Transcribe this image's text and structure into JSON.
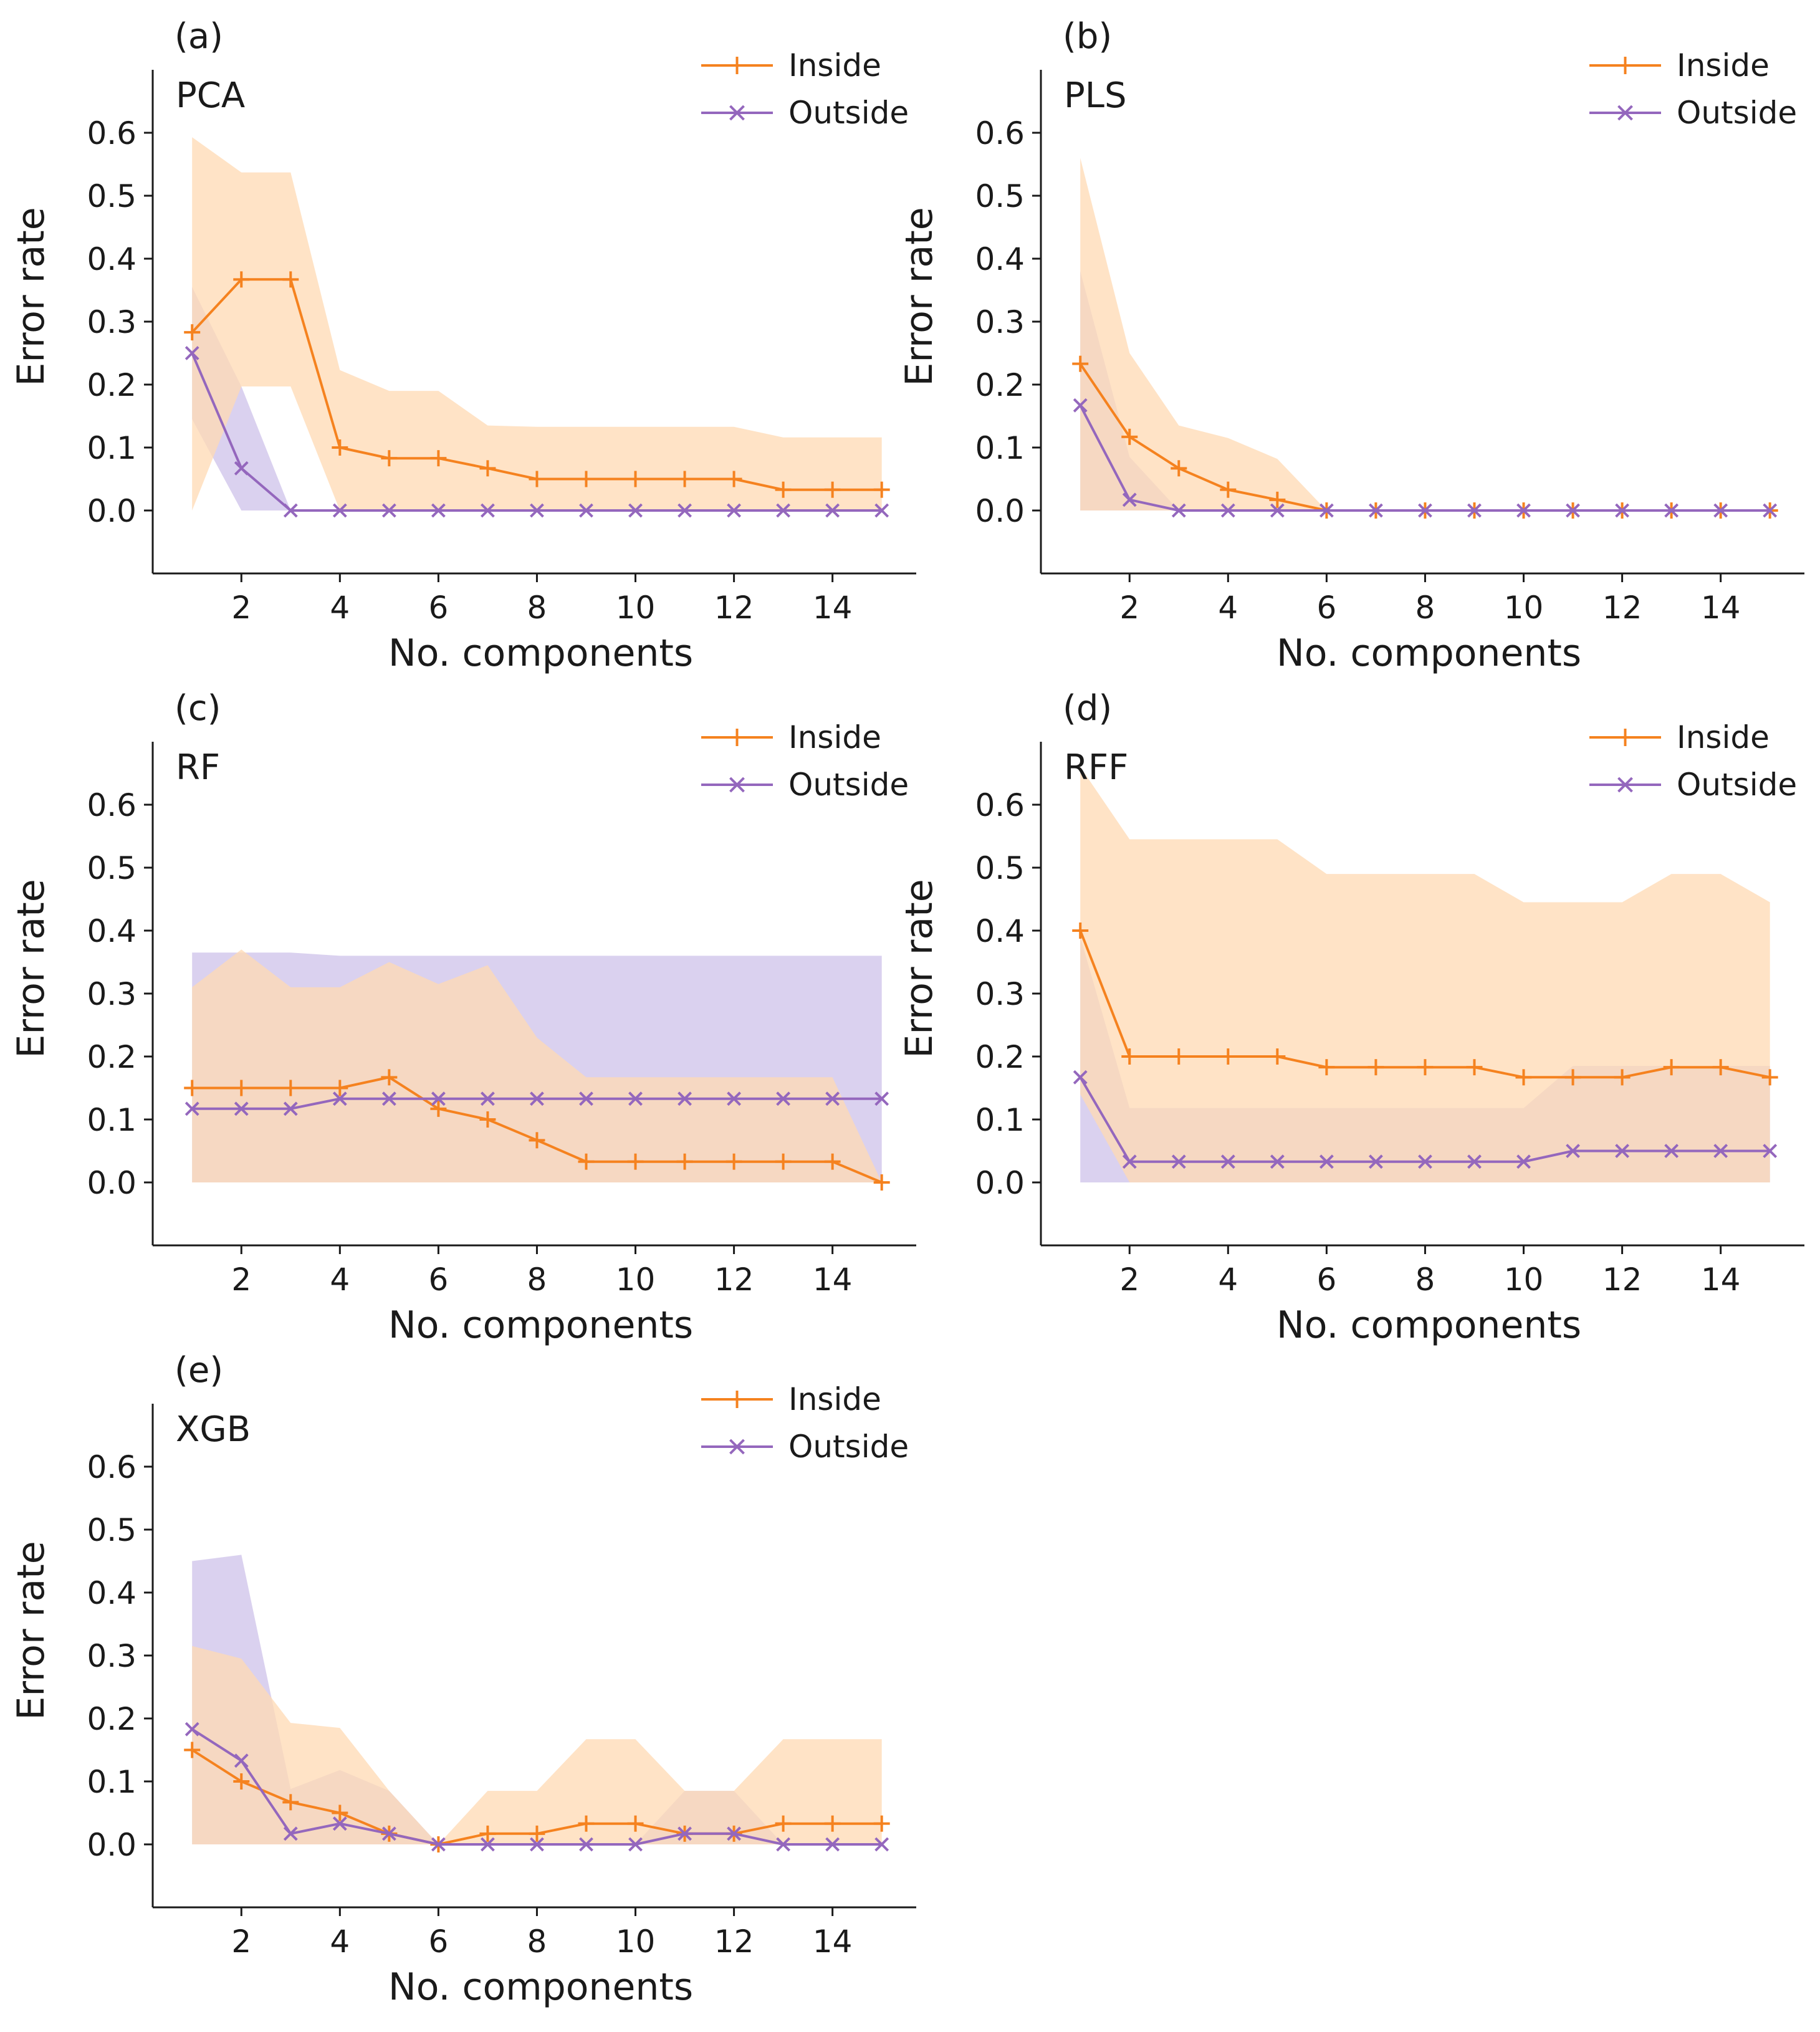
{
  "colors": {
    "inside": "#f5821f",
    "outside": "#9467bd",
    "inside_band": "#ffd9b3",
    "outside_band": "#b5a4e0"
  },
  "chart_data": [
    {
      "type": "line",
      "panel_label": "(a)",
      "title": "PCA",
      "xlabel": "No. components",
      "ylabel": "Error rate",
      "xlim": [
        0.2,
        15.7
      ],
      "ylim": [
        -0.1,
        0.7
      ],
      "xticks": [
        2,
        4,
        6,
        8,
        10,
        12,
        14
      ],
      "yticks": [
        0.0,
        0.1,
        0.2,
        0.3,
        0.4,
        0.5,
        0.6
      ],
      "legend": "top-right",
      "x": [
        1,
        2,
        3,
        4,
        5,
        6,
        7,
        8,
        9,
        10,
        11,
        12,
        13,
        14,
        15
      ],
      "series": [
        {
          "name": "Inside",
          "marker": "+",
          "values": [
            0.283,
            0.367,
            0.367,
            0.1,
            0.083,
            0.083,
            0.067,
            0.05,
            0.05,
            0.05,
            0.05,
            0.05,
            0.033,
            0.033,
            0.033
          ],
          "lower": [
            0.0,
            0.197,
            0.197,
            0.0,
            0.0,
            0.0,
            0.0,
            0.0,
            0.0,
            0.0,
            0.0,
            0.0,
            0.0,
            0.0,
            0.0
          ],
          "upper": [
            0.593,
            0.537,
            0.537,
            0.223,
            0.19,
            0.19,
            0.135,
            0.133,
            0.133,
            0.133,
            0.133,
            0.133,
            0.116,
            0.116,
            0.116
          ]
        },
        {
          "name": "Outside",
          "marker": "x",
          "values": [
            0.25,
            0.067,
            0.0,
            0.0,
            0.0,
            0.0,
            0.0,
            0.0,
            0.0,
            0.0,
            0.0,
            0.0,
            0.0,
            0.0,
            0.0
          ],
          "lower": [
            0.145,
            0.0,
            0.0,
            0.0,
            0.0,
            0.0,
            0.0,
            0.0,
            0.0,
            0.0,
            0.0,
            0.0,
            0.0,
            0.0,
            0.0
          ],
          "upper": [
            0.355,
            0.197,
            0.0,
            0.0,
            0.0,
            0.0,
            0.0,
            0.0,
            0.0,
            0.0,
            0.0,
            0.0,
            0.0,
            0.0,
            0.0
          ]
        }
      ]
    },
    {
      "type": "line",
      "panel_label": "(b)",
      "title": "PLS",
      "xlabel": "No. components",
      "ylabel": "Error rate",
      "xlim": [
        0.2,
        15.7
      ],
      "ylim": [
        -0.1,
        0.7
      ],
      "xticks": [
        2,
        4,
        6,
        8,
        10,
        12,
        14
      ],
      "yticks": [
        0.0,
        0.1,
        0.2,
        0.3,
        0.4,
        0.5,
        0.6
      ],
      "legend": "top-right",
      "x": [
        1,
        2,
        3,
        4,
        5,
        6,
        7,
        8,
        9,
        10,
        11,
        12,
        13,
        14,
        15
      ],
      "series": [
        {
          "name": "Inside",
          "marker": "+",
          "values": [
            0.233,
            0.117,
            0.067,
            0.033,
            0.017,
            0.0,
            0.0,
            0.0,
            0.0,
            0.0,
            0.0,
            0.0,
            0.0,
            0.0,
            0.0
          ],
          "lower": [
            0.0,
            0.0,
            0.0,
            0.0,
            0.0,
            0.0,
            0.0,
            0.0,
            0.0,
            0.0,
            0.0,
            0.0,
            0.0,
            0.0,
            0.0
          ],
          "upper": [
            0.56,
            0.25,
            0.135,
            0.115,
            0.082,
            0.0,
            0.0,
            0.0,
            0.0,
            0.0,
            0.0,
            0.0,
            0.0,
            0.0,
            0.0
          ]
        },
        {
          "name": "Outside",
          "marker": "x",
          "values": [
            0.167,
            0.017,
            0.0,
            0.0,
            0.0,
            0.0,
            0.0,
            0.0,
            0.0,
            0.0,
            0.0,
            0.0,
            0.0,
            0.0,
            0.0
          ],
          "lower": [
            0.0,
            0.0,
            0.0,
            0.0,
            0.0,
            0.0,
            0.0,
            0.0,
            0.0,
            0.0,
            0.0,
            0.0,
            0.0,
            0.0,
            0.0
          ],
          "upper": [
            0.38,
            0.085,
            0.0,
            0.0,
            0.0,
            0.0,
            0.0,
            0.0,
            0.0,
            0.0,
            0.0,
            0.0,
            0.0,
            0.0,
            0.0
          ]
        }
      ]
    },
    {
      "type": "line",
      "panel_label": "(c)",
      "title": "RF",
      "xlabel": "No. components",
      "ylabel": "Error rate",
      "xlim": [
        0.2,
        15.7
      ],
      "ylim": [
        -0.1,
        0.7
      ],
      "xticks": [
        2,
        4,
        6,
        8,
        10,
        12,
        14
      ],
      "yticks": [
        0.0,
        0.1,
        0.2,
        0.3,
        0.4,
        0.5,
        0.6
      ],
      "legend": "top-right",
      "x": [
        1,
        2,
        3,
        4,
        5,
        6,
        7,
        8,
        9,
        10,
        11,
        12,
        13,
        14,
        15
      ],
      "series": [
        {
          "name": "Inside",
          "marker": "+",
          "values": [
            0.15,
            0.15,
            0.15,
            0.15,
            0.167,
            0.117,
            0.1,
            0.067,
            0.033,
            0.033,
            0.033,
            0.033,
            0.033,
            0.033,
            0.0
          ],
          "lower": [
            0.0,
            0.0,
            0.0,
            0.0,
            0.0,
            0.0,
            0.0,
            0.0,
            0.0,
            0.0,
            0.0,
            0.0,
            0.0,
            0.0,
            0.0
          ],
          "upper": [
            0.31,
            0.37,
            0.31,
            0.31,
            0.35,
            0.315,
            0.345,
            0.23,
            0.167,
            0.167,
            0.167,
            0.167,
            0.167,
            0.167,
            0.0
          ]
        },
        {
          "name": "Outside",
          "marker": "x",
          "values": [
            0.117,
            0.117,
            0.117,
            0.133,
            0.133,
            0.133,
            0.133,
            0.133,
            0.133,
            0.133,
            0.133,
            0.133,
            0.133,
            0.133,
            0.133
          ],
          "lower": [
            0.0,
            0.0,
            0.0,
            0.0,
            0.0,
            0.0,
            0.0,
            0.0,
            0.0,
            0.0,
            0.0,
            0.0,
            0.0,
            0.0,
            0.0
          ],
          "upper": [
            0.365,
            0.365,
            0.365,
            0.36,
            0.36,
            0.36,
            0.36,
            0.36,
            0.36,
            0.36,
            0.36,
            0.36,
            0.36,
            0.36,
            0.36
          ]
        }
      ]
    },
    {
      "type": "line",
      "panel_label": "(d)",
      "title": "RFF",
      "xlabel": "No. components",
      "ylabel": "Error rate",
      "xlim": [
        0.2,
        15.7
      ],
      "ylim": [
        -0.1,
        0.7
      ],
      "xticks": [
        2,
        4,
        6,
        8,
        10,
        12,
        14
      ],
      "yticks": [
        0.0,
        0.1,
        0.2,
        0.3,
        0.4,
        0.5,
        0.6
      ],
      "legend": "top-right",
      "x": [
        1,
        2,
        3,
        4,
        5,
        6,
        7,
        8,
        9,
        10,
        11,
        12,
        13,
        14,
        15
      ],
      "series": [
        {
          "name": "Inside",
          "marker": "+",
          "values": [
            0.4,
            0.2,
            0.2,
            0.2,
            0.2,
            0.183,
            0.183,
            0.183,
            0.183,
            0.167,
            0.167,
            0.167,
            0.183,
            0.183,
            0.167
          ],
          "lower": [
            0.14,
            0.0,
            0.0,
            0.0,
            0.0,
            0.0,
            0.0,
            0.0,
            0.0,
            0.0,
            0.0,
            0.0,
            0.0,
            0.0,
            0.0
          ],
          "upper": [
            0.66,
            0.545,
            0.545,
            0.545,
            0.545,
            0.49,
            0.49,
            0.49,
            0.49,
            0.445,
            0.445,
            0.445,
            0.49,
            0.49,
            0.445
          ]
        },
        {
          "name": "Outside",
          "marker": "x",
          "values": [
            0.167,
            0.033,
            0.033,
            0.033,
            0.033,
            0.033,
            0.033,
            0.033,
            0.033,
            0.033,
            0.05,
            0.05,
            0.05,
            0.05,
            0.05
          ],
          "lower": [
            0.0,
            0.0,
            0.0,
            0.0,
            0.0,
            0.0,
            0.0,
            0.0,
            0.0,
            0.0,
            0.0,
            0.0,
            0.0,
            0.0,
            0.0
          ],
          "upper": [
            0.39,
            0.118,
            0.118,
            0.118,
            0.118,
            0.118,
            0.118,
            0.118,
            0.118,
            0.118,
            0.185,
            0.185,
            0.185,
            0.185,
            0.185
          ]
        }
      ]
    },
    {
      "type": "line",
      "panel_label": "(e)",
      "title": "XGB",
      "xlabel": "No. components",
      "ylabel": "Error rate",
      "xlim": [
        0.2,
        15.7
      ],
      "ylim": [
        -0.1,
        0.7
      ],
      "xticks": [
        2,
        4,
        6,
        8,
        10,
        12,
        14
      ],
      "yticks": [
        0.0,
        0.1,
        0.2,
        0.3,
        0.4,
        0.5,
        0.6
      ],
      "legend": "top-right",
      "x": [
        1,
        2,
        3,
        4,
        5,
        6,
        7,
        8,
        9,
        10,
        11,
        12,
        13,
        14,
        15
      ],
      "series": [
        {
          "name": "Inside",
          "marker": "+",
          "values": [
            0.15,
            0.1,
            0.067,
            0.05,
            0.017,
            0.0,
            0.017,
            0.017,
            0.033,
            0.033,
            0.017,
            0.017,
            0.033,
            0.033,
            0.033
          ],
          "lower": [
            0.0,
            0.0,
            0.0,
            0.0,
            0.0,
            0.0,
            0.0,
            0.0,
            0.0,
            0.0,
            0.0,
            0.0,
            0.0,
            0.0,
            0.0
          ],
          "upper": [
            0.315,
            0.295,
            0.193,
            0.185,
            0.085,
            0.0,
            0.085,
            0.085,
            0.167,
            0.167,
            0.085,
            0.085,
            0.167,
            0.167,
            0.167
          ]
        },
        {
          "name": "Outside",
          "marker": "x",
          "values": [
            0.183,
            0.133,
            0.017,
            0.033,
            0.017,
            0.0,
            0.0,
            0.0,
            0.0,
            0.0,
            0.017,
            0.017,
            0.0,
            0.0,
            0.0
          ],
          "lower": [
            0.0,
            0.0,
            0.0,
            0.0,
            0.0,
            0.0,
            0.0,
            0.0,
            0.0,
            0.0,
            0.0,
            0.0,
            0.0,
            0.0,
            0.0
          ],
          "upper": [
            0.45,
            0.46,
            0.088,
            0.118,
            0.085,
            0.0,
            0.0,
            0.0,
            0.0,
            0.0,
            0.085,
            0.085,
            0.0,
            0.0,
            0.0
          ]
        }
      ]
    }
  ]
}
